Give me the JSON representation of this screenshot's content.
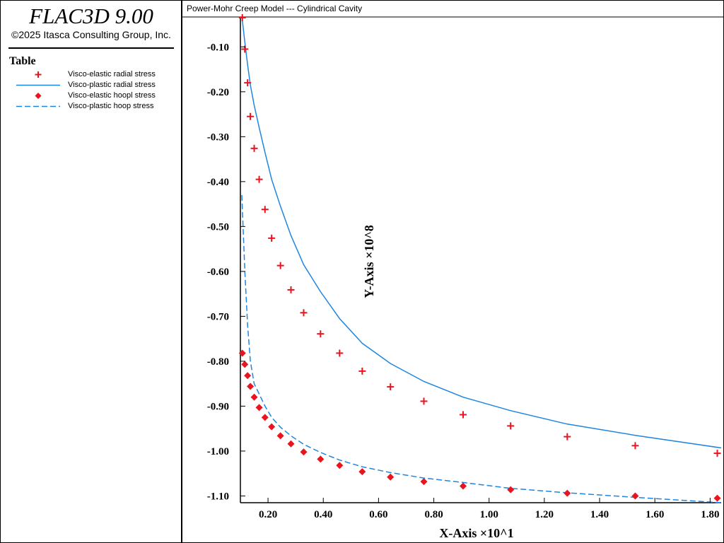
{
  "sidebar": {
    "app_title": "FLAC3D 9.00",
    "copyright": "©2025 Itasca Consulting Group, Inc.",
    "legend_title": "Table",
    "legend_items": [
      {
        "label": "Visco-elastic radial stress",
        "marker": "plus",
        "color": "#e8141e"
      },
      {
        "label": "Visco-plastic radial stress",
        "marker": "solid-line",
        "color": "#1f86e0"
      },
      {
        "label": "Visco-elastic hoopl stress",
        "marker": "diamond",
        "color": "#e8141e"
      },
      {
        "label": "Visco-plastic hoop stress",
        "marker": "dashed-line",
        "color": "#1f86e0"
      }
    ]
  },
  "plot": {
    "caption": "Power-Mohr Creep Model --- Cylindrical Cavity"
  },
  "chart_data": {
    "type": "scatter",
    "xlabel": "X-Axis ×10^1",
    "ylabel": "Y-Axis ×10^8",
    "xlim": [
      0.1,
      1.84
    ],
    "ylim": [
      -1.115,
      -0.035
    ],
    "xticks": [
      "0.20",
      "0.40",
      "0.60",
      "0.80",
      "1.00",
      "1.20",
      "1.40",
      "1.60",
      "1.80"
    ],
    "yticks": [
      "-0.10",
      "-0.20",
      "-0.30",
      "-0.40",
      "-0.50",
      "-0.60",
      "-0.70",
      "-0.80",
      "-0.90",
      "-1.00",
      "-1.10"
    ],
    "grid": false,
    "legend_position": "left-panel",
    "series": [
      {
        "name": "Visco-elastic radial stress",
        "kind": "points",
        "marker": "plus",
        "color": "#e8141e",
        "x": [
          0.107,
          0.116,
          0.126,
          0.136,
          0.15,
          0.168,
          0.189,
          0.213,
          0.245,
          0.283,
          0.329,
          0.39,
          0.459,
          0.541,
          0.643,
          0.764,
          0.906,
          1.078,
          1.283,
          1.529,
          1.826
        ],
        "y": [
          -0.035,
          -0.105,
          -0.18,
          -0.255,
          -0.326,
          -0.395,
          -0.462,
          -0.526,
          -0.587,
          -0.641,
          -0.692,
          -0.739,
          -0.782,
          -0.822,
          -0.857,
          -0.889,
          -0.919,
          -0.944,
          -0.968,
          -0.988,
          -1.005
        ]
      },
      {
        "name": "Visco-plastic radial stress",
        "kind": "line",
        "dash": false,
        "color": "#1f86e0",
        "x": [
          0.107,
          0.116,
          0.126,
          0.136,
          0.15,
          0.168,
          0.189,
          0.213,
          0.245,
          0.283,
          0.329,
          0.39,
          0.459,
          0.541,
          0.643,
          0.764,
          0.906,
          1.078,
          1.283,
          1.529,
          1.84
        ],
        "y": [
          -0.04,
          -0.09,
          -0.14,
          -0.185,
          -0.23,
          -0.28,
          -0.335,
          -0.395,
          -0.455,
          -0.52,
          -0.585,
          -0.645,
          -0.705,
          -0.76,
          -0.805,
          -0.845,
          -0.88,
          -0.91,
          -0.94,
          -0.965,
          -0.993
        ]
      },
      {
        "name": "Visco-elastic hoopl stress",
        "kind": "points",
        "marker": "diamond",
        "color": "#e8141e",
        "x": [
          0.107,
          0.116,
          0.126,
          0.136,
          0.15,
          0.168,
          0.189,
          0.213,
          0.245,
          0.283,
          0.329,
          0.39,
          0.459,
          0.541,
          0.643,
          0.764,
          0.906,
          1.078,
          1.283,
          1.529,
          1.826
        ],
        "y": [
          -0.782,
          -0.807,
          -0.832,
          -0.856,
          -0.88,
          -0.903,
          -0.925,
          -0.946,
          -0.966,
          -0.984,
          -1.002,
          -1.018,
          -1.032,
          -1.046,
          -1.058,
          -1.068,
          -1.078,
          -1.086,
          -1.094,
          -1.1,
          -1.105
        ]
      },
      {
        "name": "Visco-plastic hoop stress",
        "kind": "line",
        "dash": true,
        "color": "#1f86e0",
        "x": [
          0.105,
          0.116,
          0.126,
          0.136,
          0.15,
          0.168,
          0.189,
          0.213,
          0.245,
          0.283,
          0.329,
          0.39,
          0.459,
          0.541,
          0.643,
          0.764,
          0.906,
          1.078,
          1.283,
          1.529,
          1.84
        ],
        "y": [
          -0.43,
          -0.6,
          -0.72,
          -0.8,
          -0.85,
          -0.873,
          -0.9,
          -0.925,
          -0.947,
          -0.966,
          -0.985,
          -1.003,
          -1.02,
          -1.035,
          -1.048,
          -1.06,
          -1.07,
          -1.083,
          -1.093,
          -1.103,
          -1.115
        ]
      }
    ]
  }
}
